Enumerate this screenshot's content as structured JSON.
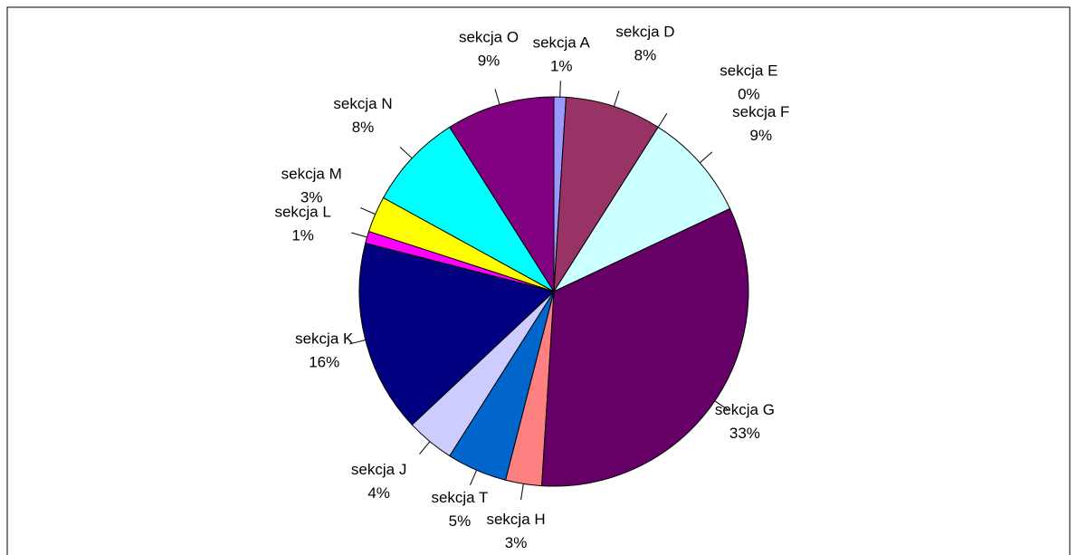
{
  "chart_data": {
    "type": "pie",
    "categories": [
      "sekcja A",
      "sekcja D",
      "sekcja E",
      "sekcja F",
      "sekcja G",
      "sekcja H",
      "sekcja T",
      "sekcja J",
      "sekcja K",
      "sekcja L",
      "sekcja M",
      "sekcja N",
      "sekcja O"
    ],
    "values": [
      1,
      8,
      0,
      9,
      33,
      3,
      5,
      4,
      16,
      1,
      3,
      8,
      9
    ],
    "value_labels": [
      "1%",
      "8%",
      "0%",
      "9%",
      "33%",
      "3%",
      "5%",
      "4%",
      "16%",
      "1%",
      "3%",
      "8%",
      "9%"
    ],
    "colors": [
      "#9999ff",
      "#993366",
      "#333399",
      "#ccffff",
      "#660066",
      "#ff8080",
      "#0066cc",
      "#ccccff",
      "#000080",
      "#ff00ff",
      "#ffff00",
      "#00ffff",
      "#800080"
    ]
  }
}
